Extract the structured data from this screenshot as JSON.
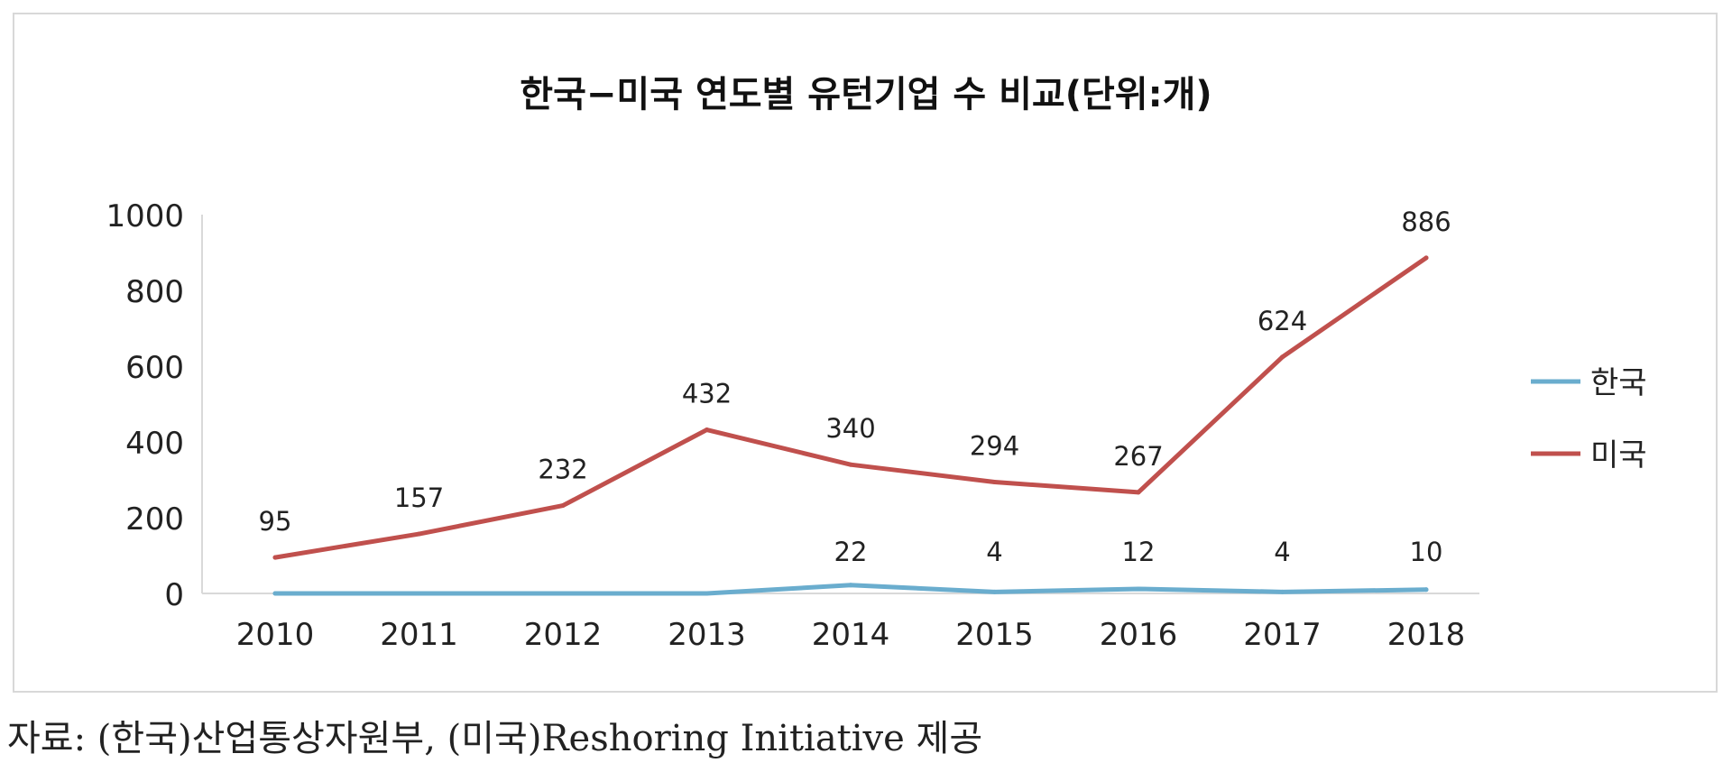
{
  "chart_data": {
    "type": "line",
    "title": "한국−미국 연도별 유턴기업 수 비교(단위:개)",
    "xlabel": "",
    "ylabel": "",
    "categories": [
      "2010",
      "2011",
      "2012",
      "2013",
      "2014",
      "2015",
      "2016",
      "2017",
      "2018"
    ],
    "ylim": [
      0,
      1000
    ],
    "yticks": [
      0,
      200,
      400,
      600,
      800,
      1000
    ],
    "ytick_labels": [
      "0",
      "200",
      "400",
      "600",
      "800",
      "1000"
    ],
    "grid": false,
    "legend_position": "right",
    "series": [
      {
        "name": "한국",
        "color": "#6aadce",
        "values": [
          0,
          0,
          0,
          0,
          22,
          4,
          12,
          4,
          10
        ],
        "data_labels": [
          "",
          "",
          "",
          "",
          "22",
          "4",
          "12",
          "4",
          "10"
        ]
      },
      {
        "name": "미국",
        "color": "#c0504d",
        "values": [
          95,
          157,
          232,
          432,
          340,
          294,
          267,
          624,
          886
        ],
        "data_labels": [
          "95",
          "157",
          "232",
          "432",
          "340",
          "294",
          "267",
          "624",
          "886"
        ]
      }
    ]
  },
  "source_note": "자료: (한국)산업통상자원부, (미국)Reshoring Initiative 제공"
}
